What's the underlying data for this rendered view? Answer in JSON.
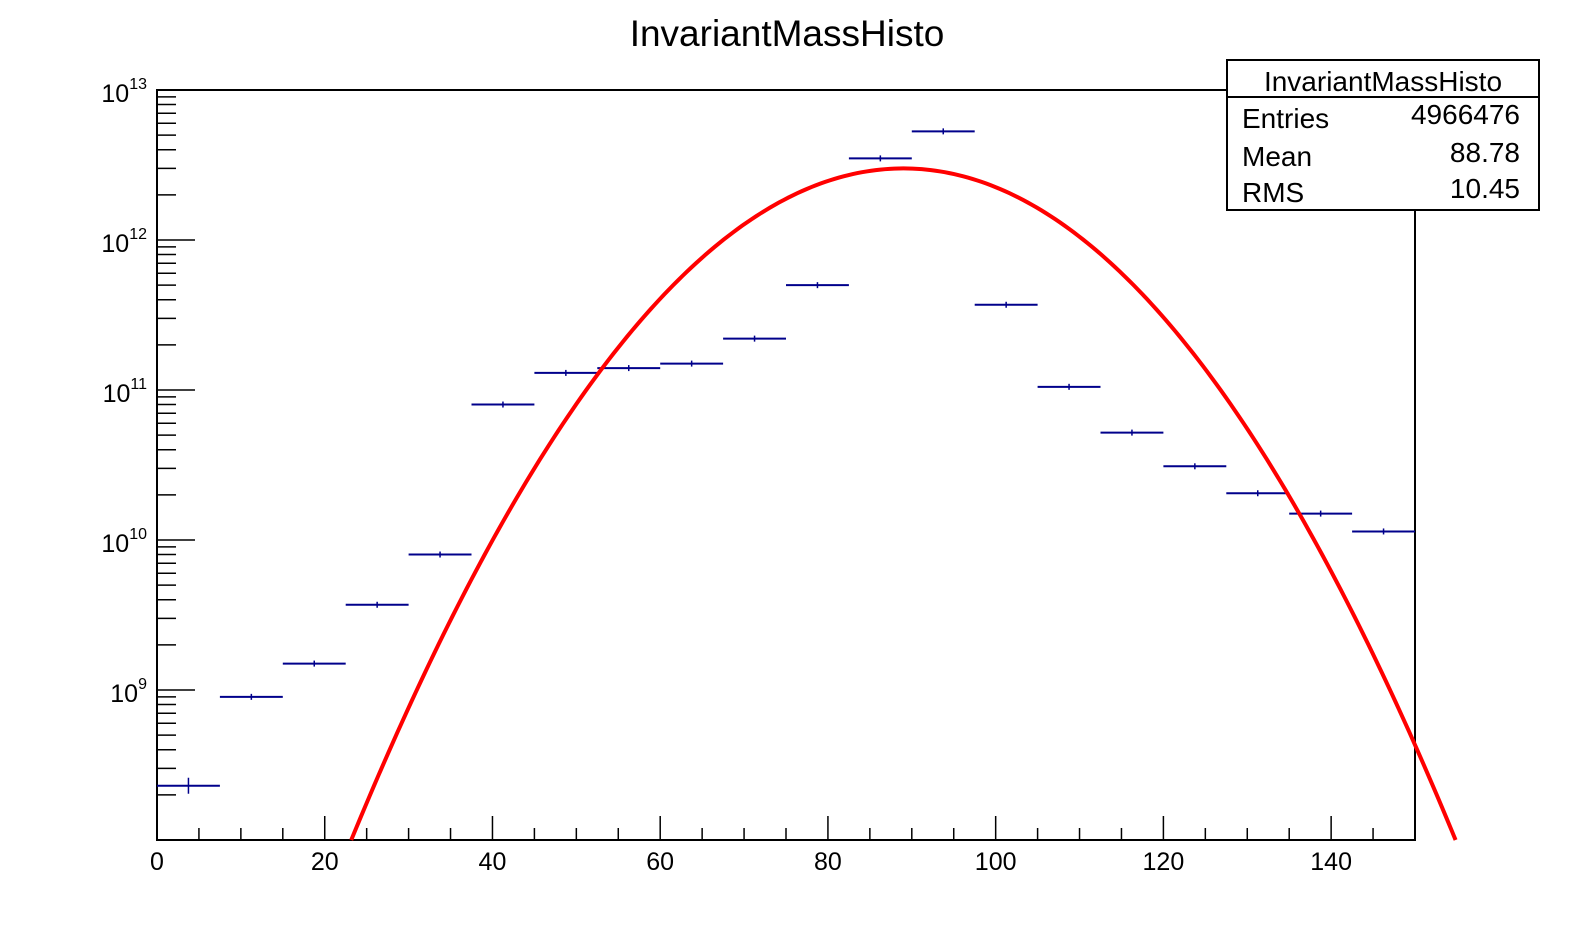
{
  "chart_data": {
    "type": "histogram",
    "title": "InvariantMassHisto",
    "xlabel": "",
    "ylabel": "",
    "xlim": [
      0,
      150
    ],
    "ylim": [
      100000000,
      10000000000000
    ],
    "y_scale": "log",
    "grid": false,
    "x_ticks": [
      {
        "value": 0,
        "label": "0"
      },
      {
        "value": 20,
        "label": "20"
      },
      {
        "value": 40,
        "label": "40"
      },
      {
        "value": 60,
        "label": "60"
      },
      {
        "value": 80,
        "label": "80"
      },
      {
        "value": 100,
        "label": "100"
      },
      {
        "value": 120,
        "label": "120"
      },
      {
        "value": 140,
        "label": "140"
      }
    ],
    "y_ticks": [
      {
        "value": 1000000000,
        "base": "10",
        "exponent": "9"
      },
      {
        "value": 10000000000,
        "base": "10",
        "exponent": "10"
      },
      {
        "value": 100000000000,
        "base": "10",
        "exponent": "11"
      },
      {
        "value": 1000000000000,
        "base": "10",
        "exponent": "12"
      },
      {
        "value": 10000000000000,
        "base": "10",
        "exponent": "13"
      }
    ],
    "series": [
      {
        "kind": "histogram",
        "color": "#00008b",
        "bin_edges": [
          0,
          7.5,
          15,
          22.5,
          30,
          37.5,
          45,
          52.5,
          60,
          67.5,
          75,
          82.5,
          90,
          97.5,
          105,
          112.5,
          120,
          127.5,
          135,
          142.5,
          150
        ],
        "values": [
          230000000,
          900000000,
          1500000000,
          3700000000,
          8000000000,
          80000000000,
          130000000000,
          140000000000,
          150000000000,
          220000000000,
          500000000000,
          3500000000000,
          5300000000000,
          370000000000,
          105000000000,
          52000000000,
          31000000000,
          20500000000,
          15000000000,
          11400000000
        ]
      },
      {
        "kind": "fit",
        "color": "#ff0000",
        "function": "gaus",
        "amplitude": 3000000000000,
        "mean": 89,
        "sigma": 14.5
      }
    ],
    "stats_box": {
      "title": "InvariantMassHisto",
      "placement": "top-right",
      "rows": [
        {
          "label": "Entries",
          "value": "4966476"
        },
        {
          "label": "Mean",
          "value": "88.78"
        },
        {
          "label": "RMS",
          "value": "10.45"
        }
      ]
    }
  }
}
